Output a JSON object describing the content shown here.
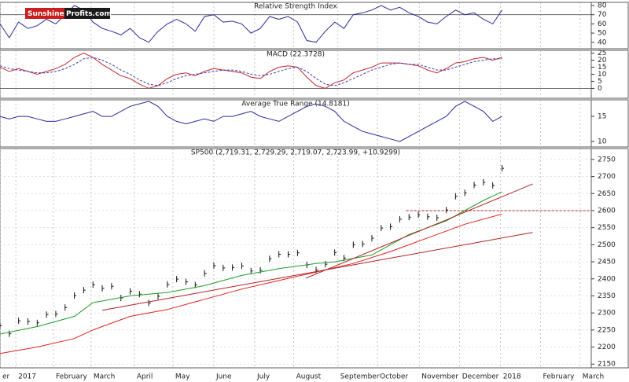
{
  "logo": {
    "part1": "Sunshine",
    "part2": "Profits.com"
  },
  "chart_data": [
    {
      "type": "line",
      "title": "Relative Strength Index",
      "ylim": [
        33,
        83.4
      ],
      "yticks": [
        40,
        50,
        60,
        70,
        80
      ],
      "reference_lines": [
        70
      ],
      "x": [
        0,
        1,
        2,
        3,
        4,
        5,
        6,
        7,
        8,
        9,
        10,
        11,
        12,
        13,
        14,
        15,
        16,
        17,
        18,
        19,
        20,
        21,
        22,
        23,
        24,
        25,
        26,
        27,
        28,
        29,
        30,
        31,
        32,
        33,
        34,
        35,
        36,
        37,
        38,
        39,
        40,
        41,
        42,
        43,
        44,
        45,
        46,
        47,
        48,
        49,
        50,
        51,
        52,
        53,
        54
      ],
      "series": [
        {
          "color": "#2a2a9a",
          "values": [
            60,
            45,
            62,
            55,
            58,
            65,
            60,
            70,
            80,
            75,
            62,
            55,
            52,
            48,
            55,
            45,
            40,
            52,
            60,
            65,
            60,
            52,
            68,
            70,
            62,
            63,
            60,
            50,
            55,
            68,
            65,
            68,
            62,
            42,
            40,
            52,
            62,
            55,
            70,
            72,
            75,
            80,
            75,
            78,
            72,
            68,
            62,
            60,
            68,
            75,
            70,
            72,
            65,
            60,
            75
          ]
        }
      ]
    },
    {
      "type": "line",
      "title": "MACD (22.3728)",
      "ylim": [
        -7,
        27
      ],
      "yticks": [
        0,
        5,
        10,
        15,
        20,
        25
      ],
      "reference_lines": [
        0
      ],
      "x": [
        0,
        1,
        2,
        3,
        4,
        5,
        6,
        7,
        8,
        9,
        10,
        11,
        12,
        13,
        14,
        15,
        16,
        17,
        18,
        19,
        20,
        21,
        22,
        23,
        24,
        25,
        26,
        27,
        28,
        29,
        30,
        31,
        32,
        33,
        34,
        35,
        36,
        37,
        38,
        39,
        40,
        41,
        42,
        43,
        44,
        45,
        46,
        47,
        48,
        49,
        50,
        51,
        52,
        53,
        54
      ],
      "series": [
        {
          "color": "#c0272d",
          "dashed": false,
          "values": [
            15,
            12,
            14,
            12,
            10,
            12,
            14,
            17,
            22,
            25,
            22,
            17,
            13,
            9,
            7,
            3,
            0,
            2,
            7,
            10,
            11,
            9,
            12,
            14,
            13,
            12,
            11,
            8,
            7,
            12,
            15,
            16,
            15,
            8,
            2,
            0,
            4,
            6,
            11,
            13,
            15,
            18,
            18,
            18,
            17,
            16,
            13,
            11,
            14,
            18,
            19,
            21,
            22,
            20,
            22
          ]
        },
        {
          "color": "#3a3ab0",
          "dashed": true,
          "values": [
            16,
            14,
            13,
            12,
            11,
            11,
            12,
            14,
            17,
            21,
            22,
            20,
            17,
            13,
            10,
            6,
            3,
            2,
            4,
            7,
            9,
            10,
            11,
            12,
            13,
            13,
            12,
            10,
            9,
            10,
            12,
            14,
            15,
            12,
            7,
            3,
            2,
            4,
            7,
            10,
            13,
            15,
            17,
            18,
            17,
            17,
            15,
            13,
            13,
            15,
            17,
            19,
            20,
            21,
            21
          ]
        }
      ]
    },
    {
      "type": "line",
      "title": "Average True Range (14.8181)",
      "ylim": [
        8.9,
        18.3
      ],
      "yticks": [
        10,
        15
      ],
      "x": [
        0,
        1,
        2,
        3,
        4,
        5,
        6,
        7,
        8,
        9,
        10,
        11,
        12,
        13,
        14,
        15,
        16,
        17,
        18,
        19,
        20,
        21,
        22,
        23,
        24,
        25,
        26,
        27,
        28,
        29,
        30,
        31,
        32,
        33,
        34,
        35,
        36,
        37,
        38,
        39,
        40,
        41,
        42,
        43,
        44,
        45,
        46,
        47,
        48,
        49,
        50,
        51,
        52,
        53,
        54
      ],
      "series": [
        {
          "color": "#2a2a9a",
          "values": [
            15,
            14.5,
            15,
            15,
            14.5,
            14,
            14,
            14.5,
            15,
            15.5,
            16,
            15,
            15,
            16,
            17,
            17.5,
            18,
            17,
            15,
            14,
            13.5,
            14,
            14.5,
            14,
            15,
            15,
            15.5,
            16,
            15,
            14.5,
            14,
            15,
            16,
            17,
            17.5,
            17,
            16,
            14,
            13,
            12,
            11.5,
            11,
            10.5,
            10,
            11,
            12,
            13,
            14,
            15,
            17,
            18,
            17,
            16,
            14,
            15
          ]
        }
      ]
    },
    {
      "type": "line",
      "title": "SP500 (2,719.31, 2,729.29, 2,719.07, 2,723.99, +10.9299)",
      "ylim": [
        2139,
        2782
      ],
      "yticks": [
        2150,
        2200,
        2250,
        2300,
        2350,
        2400,
        2450,
        2500,
        2550,
        2600,
        2650,
        2700,
        2750
      ],
      "xlim": [
        0,
        63.6
      ],
      "xticks": [
        {
          "value": 0,
          "label": "er"
        },
        {
          "value": 1.7,
          "label": "2017"
        },
        {
          "value": 5.75,
          "label": "February"
        },
        {
          "value": 9.8,
          "label": "March"
        },
        {
          "value": 14.45,
          "label": "April"
        },
        {
          "value": 18.6,
          "label": "May"
        },
        {
          "value": 23,
          "label": "June"
        },
        {
          "value": 27.4,
          "label": "July"
        },
        {
          "value": 31.6,
          "label": "August"
        },
        {
          "value": 36.35,
          "label": "September"
        },
        {
          "value": 40.6,
          "label": "October"
        },
        {
          "value": 45.1,
          "label": "November"
        },
        {
          "value": 49.45,
          "label": "December"
        },
        {
          "value": 53.85,
          "label": "2018"
        },
        {
          "value": 58.15,
          "label": "February"
        },
        {
          "value": 62.4,
          "label": "March"
        }
      ],
      "series": [
        {
          "color": "#111111",
          "marker": "tick",
          "x": [
            0,
            1,
            2,
            3,
            4,
            5,
            6,
            7,
            8,
            9,
            10,
            11,
            12,
            13,
            14,
            15,
            16,
            17,
            18,
            19,
            20,
            21,
            22,
            23,
            24,
            25,
            26,
            27,
            28,
            29,
            30,
            31,
            32,
            33,
            34,
            35,
            36,
            37,
            38,
            39,
            40,
            41,
            42,
            43,
            44,
            45,
            46,
            47,
            48,
            49,
            50,
            51,
            52,
            53,
            54
          ],
          "values": [
            2263,
            2239,
            2277,
            2275,
            2271,
            2295,
            2297,
            2316,
            2351,
            2367,
            2383,
            2372,
            2378,
            2344,
            2363,
            2355,
            2329,
            2349,
            2384,
            2399,
            2391,
            2382,
            2416,
            2439,
            2432,
            2433,
            2438,
            2423,
            2425,
            2459,
            2472,
            2472,
            2476,
            2441,
            2426,
            2443,
            2477,
            2461,
            2500,
            2502,
            2519,
            2549,
            2553,
            2575,
            2581,
            2588,
            2582,
            2579,
            2602,
            2642,
            2652,
            2675,
            2683,
            2674,
            2724
          ]
        },
        {
          "color": "#1f9a2a",
          "x": [
            0,
            4,
            8,
            10,
            14,
            18,
            22,
            26,
            30,
            34,
            36,
            40,
            44,
            48,
            52,
            54
          ],
          "values": [
            2238,
            2260,
            2290,
            2330,
            2350,
            2360,
            2380,
            2410,
            2430,
            2445,
            2450,
            2470,
            2530,
            2570,
            2630,
            2655
          ]
        },
        {
          "color": "#e02020",
          "x": [
            0,
            4,
            8,
            10,
            14,
            18,
            22,
            26,
            30,
            34,
            38,
            42,
            46,
            50,
            54
          ],
          "values": [
            2181,
            2200,
            2225,
            2250,
            2290,
            2310,
            2340,
            2370,
            2395,
            2420,
            2445,
            2480,
            2520,
            2560,
            2590
          ]
        },
        {
          "color": "#b02020",
          "x": [
            11,
            57.3
          ],
          "values": [
            2308,
            2536
          ]
        },
        {
          "color": "#b02020",
          "x": [
            32.9,
            57.3
          ],
          "values": [
            2402,
            2678
          ]
        },
        {
          "color": "#b02020",
          "dashed": true,
          "x": [
            43.7,
            63.4
          ],
          "values": [
            2600,
            2600
          ]
        }
      ]
    }
  ]
}
